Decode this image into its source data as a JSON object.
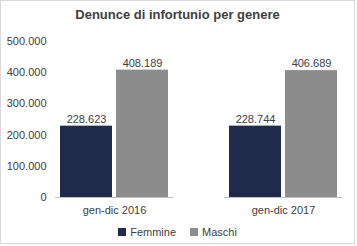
{
  "chart_data": {
    "type": "bar",
    "title": "Denunce di infortunio per genere",
    "categories": [
      "gen-dic 2016",
      "gen-dic 2017"
    ],
    "series": [
      {
        "name": "Femmine",
        "color": "#1f2b4a",
        "values": [
          228623,
          228744
        ],
        "value_labels": [
          "228.623",
          "228.744"
        ]
      },
      {
        "name": "Maschi",
        "color": "#8c8c8c",
        "values": [
          408189,
          406689
        ],
        "value_labels": [
          "408.189",
          "406.689"
        ]
      }
    ],
    "ylim": [
      0,
      500000
    ],
    "yticks": [
      0,
      {
        "value": 100000,
        "label": "100.000"
      },
      {
        "value": 200000,
        "label": "200.000"
      },
      {
        "value": 300000,
        "label": "300.000"
      },
      {
        "value": 400000,
        "label": "400.000"
      },
      {
        "value": 500000,
        "label": "500.000"
      }
    ],
    "grid": false,
    "data_labels": true,
    "legend": "bottom"
  }
}
